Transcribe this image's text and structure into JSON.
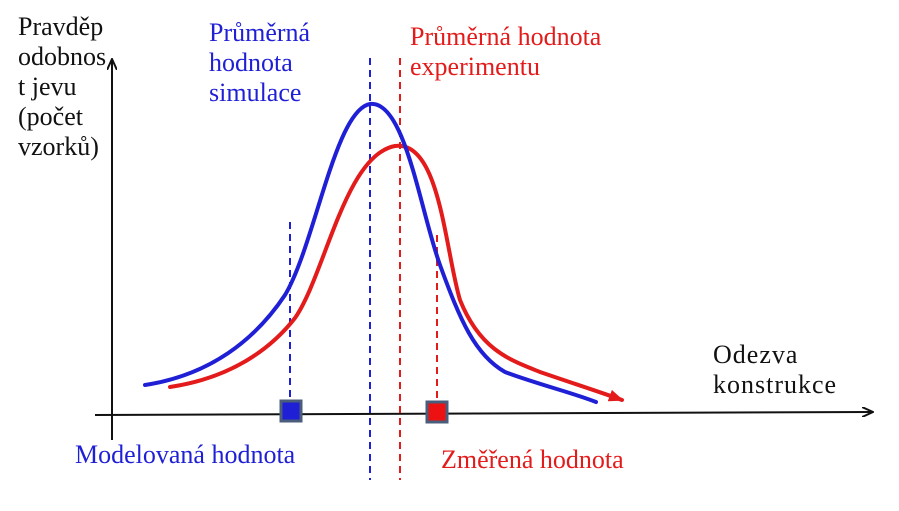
{
  "labels": {
    "y_axis": [
      "Pravděp",
      "odobnos",
      "t jevu",
      "(počet",
      "vzorků)"
    ],
    "x_axis": [
      "Odezva",
      "konstrukce"
    ],
    "sim_mean": [
      "Průměrná",
      "hodnota",
      "simulace"
    ],
    "exp_mean": [
      "Průměrná hodnota",
      "experimentu"
    ],
    "modeled_value": "Modelovaná hodnota",
    "measured_value": "Změřená hodnota"
  },
  "colors": {
    "simulation": "#1f1fd6",
    "experiment": "#e31b1b",
    "axis": "#111111"
  }
}
